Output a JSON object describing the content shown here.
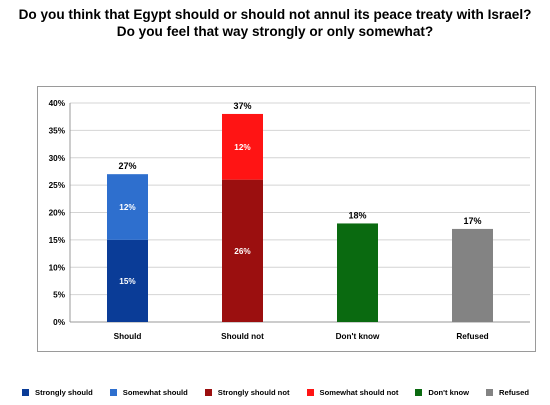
{
  "title_line1": "Do you think that Egypt should or should not annul its peace treaty with Israel?",
  "title_line2": "Do you feel that way strongly or only somewhat?",
  "chart_data": {
    "type": "bar",
    "stacked": true,
    "categories": [
      "Should",
      "Should not",
      "Don't know",
      "Refused"
    ],
    "ylim": [
      0,
      40
    ],
    "yticks": [
      "0%",
      "5%",
      "10%",
      "15%",
      "20%",
      "25%",
      "30%",
      "35%",
      "40%"
    ],
    "grid": true,
    "legend_position": "bottom",
    "series": [
      {
        "name": "Strongly should",
        "color": "#0a3c97",
        "values": [
          15,
          0,
          0,
          0
        ],
        "labels": [
          "15%",
          "",
          "",
          ""
        ]
      },
      {
        "name": "Somewhat  should",
        "color": "#2e6fce",
        "values": [
          12,
          0,
          0,
          0
        ],
        "labels": [
          "12%",
          "",
          "",
          ""
        ]
      },
      {
        "name": "Strongly should not",
        "color": "#9b0f0f",
        "values": [
          0,
          26,
          0,
          0
        ],
        "labels": [
          "",
          "26%",
          "",
          ""
        ]
      },
      {
        "name": "Somewhat should not",
        "color": "#ff1414",
        "values": [
          0,
          12,
          0,
          0
        ],
        "labels": [
          "",
          "12%",
          "",
          ""
        ]
      },
      {
        "name": "Don't know",
        "color": "#0a6a10",
        "values": [
          0,
          0,
          18,
          0
        ],
        "labels": [
          "",
          "",
          "",
          ""
        ]
      },
      {
        "name": "Refused",
        "color": "#838383",
        "values": [
          0,
          0,
          0,
          17
        ],
        "labels": [
          "",
          "",
          "",
          ""
        ]
      }
    ],
    "totals": [
      "27%",
      "37%",
      "18%",
      "17%"
    ]
  }
}
